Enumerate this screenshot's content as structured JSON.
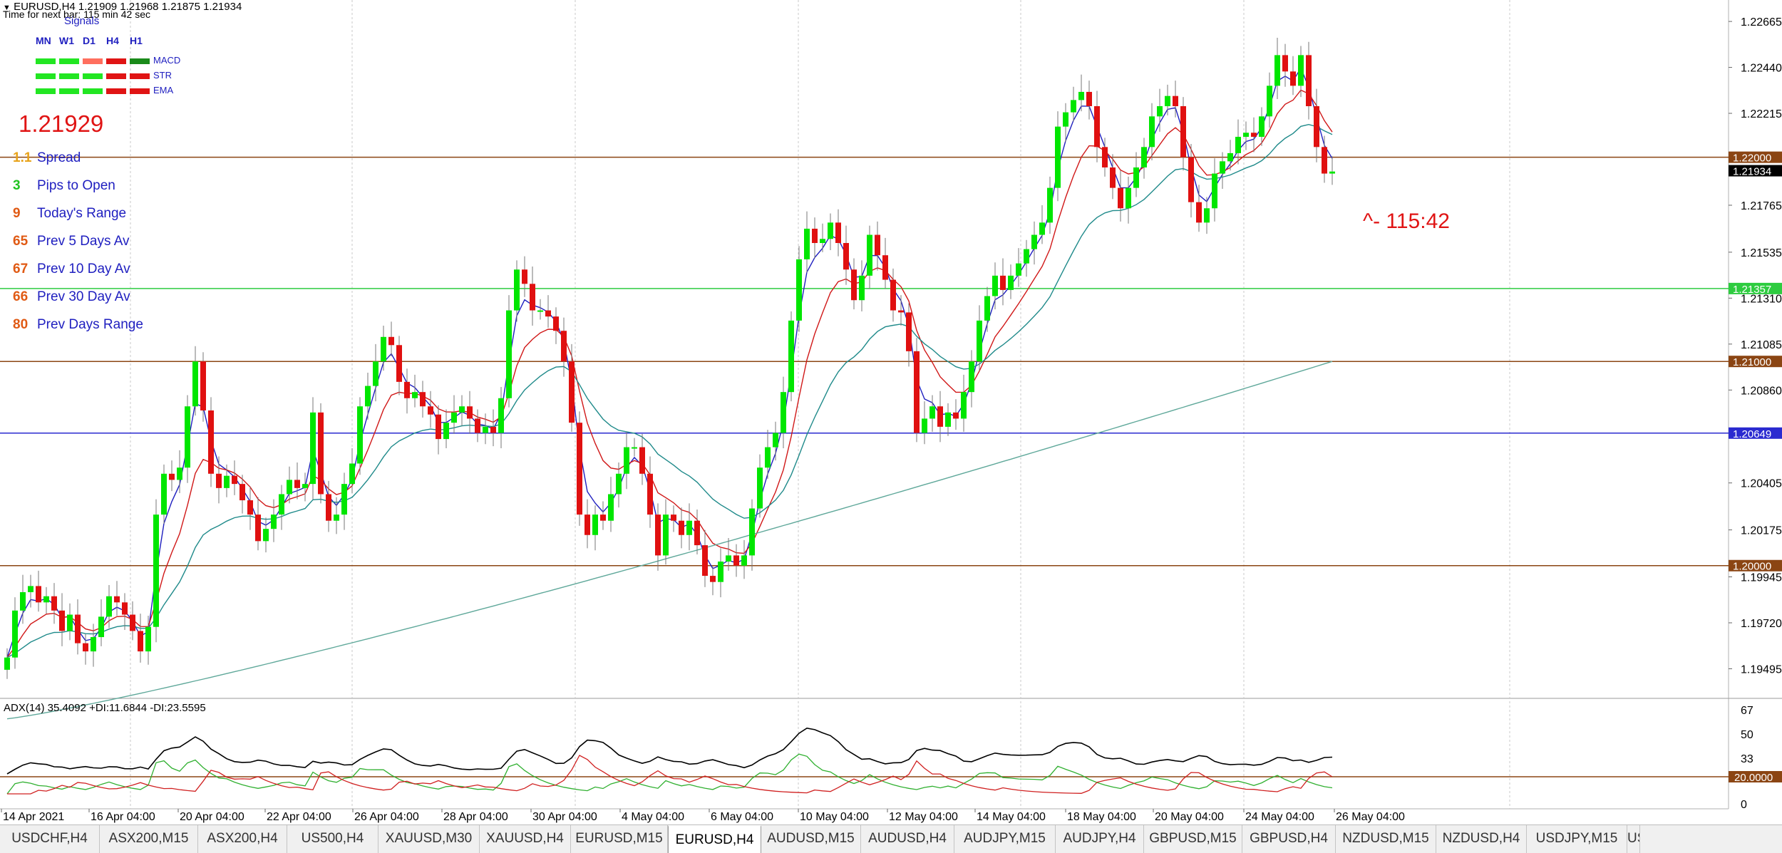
{
  "chart_header": {
    "symbol_line": "EURUSD,H4  1.21909 1.21968 1.21875 1.21934",
    "next_bar": "Time for next bar: 115 min 42 sec"
  },
  "signals": {
    "title": "Signals",
    "timeframes": [
      "MN",
      "W1",
      "D1",
      "H4",
      "H1"
    ],
    "rows": [
      {
        "label": "MACD",
        "colors": [
          "#22e622",
          "#22e622",
          "#ff6f5e",
          "#e01414",
          "#1a8a1a"
        ]
      },
      {
        "label": "STR",
        "colors": [
          "#22e622",
          "#22e622",
          "#22e622",
          "#e01414",
          "#e01414"
        ]
      },
      {
        "label": "EMA",
        "colors": [
          "#22e622",
          "#22e622",
          "#22e622",
          "#e01414",
          "#e01414"
        ]
      }
    ]
  },
  "price_display": "1.21929",
  "stats": [
    {
      "value": "1.1",
      "label": "Spread",
      "color": "#e8a31a"
    },
    {
      "value": "3",
      "label": "Pips to Open",
      "color": "#22c422"
    },
    {
      "value": "9",
      "label": "Today's Range",
      "color": "#e05a14"
    },
    {
      "value": "65",
      "label": "Prev 5 Days Av",
      "color": "#e05a14"
    },
    {
      "value": "67",
      "label": "Prev 10 Day Av",
      "color": "#e05a14"
    },
    {
      "value": "66",
      "label": "Prev 30 Day Av",
      "color": "#e05a14"
    },
    {
      "value": "80",
      "label": "Prev Days Range",
      "color": "#e05a14"
    }
  ],
  "countdown": "^- 115:42",
  "adx_label": "ADX(14) 35.4092 +DI:11.6844 -DI:23.5595",
  "colors": {
    "bull": "#00e600",
    "bear": "#e01010",
    "ma_fast": "#1f1fbf",
    "ma_mid": "#d01818",
    "ma_slow": "#1f8a8a",
    "ma_long": "#5fa89a",
    "level_brown": "#8b4513",
    "level_green": "#2ecc40",
    "level_blue": "#2a2ad0",
    "adx": "#000000",
    "plus_di": "#30b030",
    "minus_di": "#d02020"
  },
  "tabs": [
    {
      "label": "USDCHF,H4"
    },
    {
      "label": "ASX200,M15"
    },
    {
      "label": "ASX200,H4"
    },
    {
      "label": "US500,H4"
    },
    {
      "label": "XAUUSD,M30"
    },
    {
      "label": "XAUUSD,H4"
    },
    {
      "label": "EURUSD,M15"
    },
    {
      "label": "EURUSD,H4",
      "active": true
    },
    {
      "label": "AUDUSD,M15"
    },
    {
      "label": "AUDUSD,H4"
    },
    {
      "label": "AUDJPY,M15"
    },
    {
      "label": "AUDJPY,H4"
    },
    {
      "label": "GBPUSD,M15"
    },
    {
      "label": "GBPUSD,H4"
    },
    {
      "label": "NZDUSD,M15"
    },
    {
      "label": "NZDUSD,H4"
    },
    {
      "label": "USDJPY,M15"
    },
    {
      "label": "US"
    }
  ],
  "chart_data": {
    "type": "candlestick",
    "symbol": "EURUSD",
    "timeframe": "H4",
    "price_axis_ticks": [
      1.22665,
      1.2244,
      1.22215,
      1.21765,
      1.21535,
      1.2131,
      1.21085,
      1.2086,
      1.20405,
      1.20175,
      1.19945,
      1.1972,
      1.19495
    ],
    "price_range": [
      1.1935,
      1.2277
    ],
    "levels": [
      {
        "price": 1.22,
        "label": "1.22000",
        "color": "#8b4513",
        "text_color": "#ffffff"
      },
      {
        "price": 1.21934,
        "label": "1.21934",
        "color": "#000000",
        "text_color": "#ffffff"
      },
      {
        "price": 1.21357,
        "label": "1.21357",
        "color": "#2ecc40",
        "text_color": "#ffffff"
      },
      {
        "price": 1.21,
        "label": "1.21000",
        "color": "#8b4513",
        "text_color": "#ffffff"
      },
      {
        "price": 1.20649,
        "label": "1.20649",
        "color": "#2a2ad0",
        "text_color": "#ffffff"
      },
      {
        "price": 1.2,
        "label": "1.20000",
        "color": "#8b4513",
        "text_color": "#ffffff"
      }
    ],
    "time_labels": [
      "14 Apr 2021",
      "16 Apr 04:00",
      "20 Apr 04:00",
      "22 Apr 04:00",
      "26 Apr 04:00",
      "28 Apr 04:00",
      "30 Apr 04:00",
      "4 May 04:00",
      "6 May 04:00",
      "10 May 04:00",
      "12 May 04:00",
      "14 May 04:00",
      "18 May 04:00",
      "20 May 04:00",
      "24 May 04:00",
      "26 May 04:00"
    ],
    "closes": [
      1.1955,
      1.1978,
      1.1987,
      1.199,
      1.1982,
      1.1985,
      1.1978,
      1.1968,
      1.1976,
      1.1962,
      1.1958,
      1.1965,
      1.1975,
      1.1985,
      1.1982,
      1.1976,
      1.1968,
      1.1958,
      1.197,
      1.2025,
      1.2045,
      1.2042,
      1.2048,
      1.2078,
      1.21,
      1.2076,
      1.2045,
      1.2038,
      1.2044,
      1.204,
      1.2032,
      1.2025,
      1.2012,
      1.2018,
      1.2025,
      1.2035,
      1.2042,
      1.2038,
      1.204,
      1.2075,
      1.2035,
      1.2022,
      1.2025,
      1.204,
      1.205,
      1.2078,
      1.2088,
      1.21,
      1.2112,
      1.2108,
      1.209,
      1.2082,
      1.2085,
      1.2078,
      1.2074,
      1.2062,
      1.207,
      1.2075,
      1.2078,
      1.2072,
      1.2065,
      1.2068,
      1.2065,
      1.2082,
      1.2125,
      1.2145,
      1.2138,
      1.2125,
      1.2125,
      1.2122,
      1.2115,
      1.21,
      1.207,
      1.2025,
      1.2015,
      1.2025,
      1.2022,
      1.2035,
      1.2045,
      1.2058,
      1.2058,
      1.2045,
      1.2025,
      1.2005,
      1.2025,
      1.2022,
      1.2015,
      1.2022,
      1.201,
      1.1995,
      1.1992,
      1.2002,
      1.2005,
      1.2,
      1.2005,
      1.2028,
      1.2048,
      1.2058,
      1.2065,
      1.2085,
      1.212,
      1.215,
      1.2165,
      1.2158,
      1.216,
      1.2168,
      1.2158,
      1.2145,
      1.213,
      1.2142,
      1.2162,
      1.2152,
      1.214,
      1.2125,
      1.2124,
      1.2105,
      1.2065,
      1.2072,
      1.2078,
      1.2068,
      1.2075,
      1.2072,
      1.2085,
      1.21,
      1.212,
      1.2132,
      1.2142,
      1.2135,
      1.2142,
      1.2148,
      1.2155,
      1.2162,
      1.2168,
      1.2185,
      1.2215,
      1.2222,
      1.2228,
      1.2232,
      1.2225,
      1.2205,
      1.2195,
      1.2185,
      1.2175,
      1.2185,
      1.2195,
      1.2205,
      1.222,
      1.2225,
      1.223,
      1.2225,
      1.22,
      1.2178,
      1.2168,
      1.2175,
      1.2192,
      1.2198,
      1.2202,
      1.221,
      1.2212,
      1.221,
      1.222,
      1.2235,
      1.225,
      1.2242,
      1.2235,
      1.225,
      1.2225,
      1.2205,
      1.2192,
      1.2193
    ]
  }
}
